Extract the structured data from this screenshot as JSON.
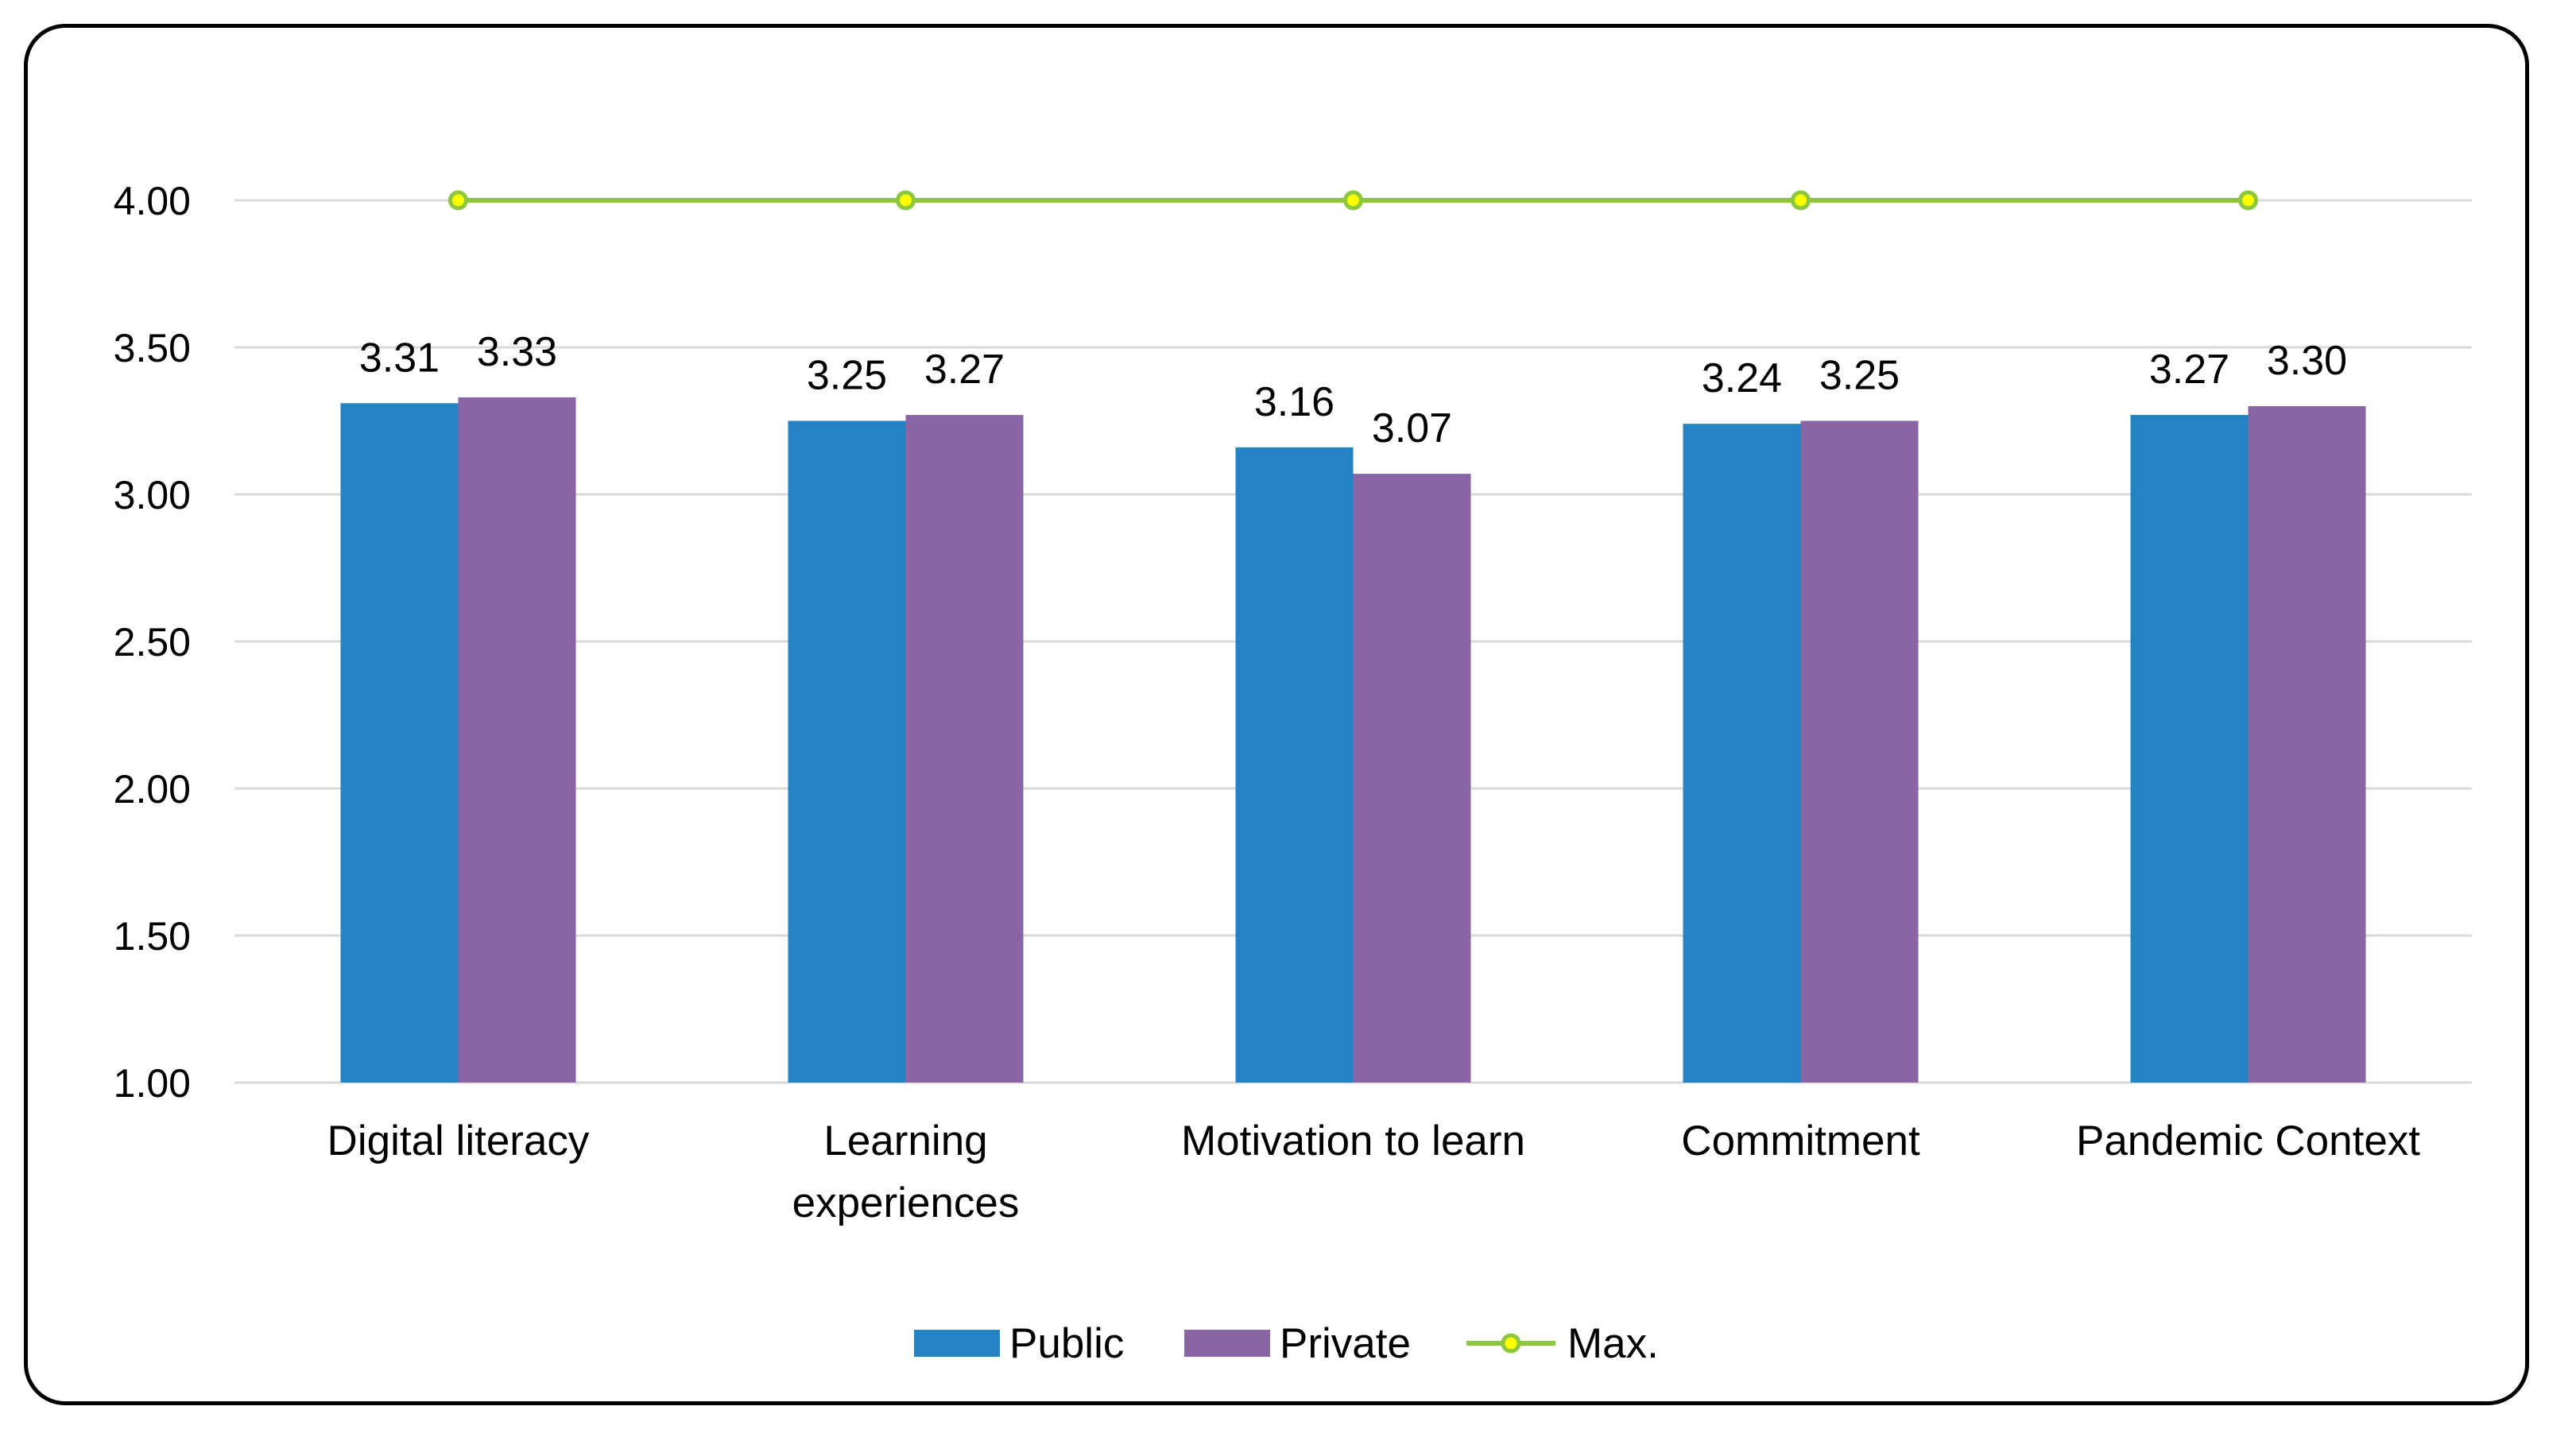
{
  "chart_data": {
    "type": "bar",
    "categories": [
      "Digital literacy",
      "Learning experiences",
      "Motivation to learn",
      "Commitment",
      "Pandemic Context"
    ],
    "category_lines": [
      [
        "Digital literacy"
      ],
      [
        "Learning",
        "experiences"
      ],
      [
        "Motivation to learn"
      ],
      [
        "Commitment"
      ],
      [
        "Pandemic Context"
      ]
    ],
    "series": [
      {
        "name": "Public",
        "values": [
          3.31,
          3.25,
          3.16,
          3.24,
          3.27
        ],
        "labels": [
          "3.31",
          "3.25",
          "3.16",
          "3.24",
          "3.27"
        ],
        "color": "#2383c3"
      },
      {
        "name": "Private",
        "values": [
          3.33,
          3.27,
          3.07,
          3.25,
          3.3
        ],
        "labels": [
          "3.33",
          "3.27",
          "3.07",
          "3.25",
          "3.30"
        ],
        "color": "#8a65a6"
      }
    ],
    "line_series": {
      "name": "Max.",
      "values": [
        4.0,
        4.0,
        4.0,
        4.0,
        4.0
      ],
      "color": "#8dc63f",
      "marker_fill": "#ffff00"
    },
    "yticks": [
      "1.00",
      "1.50",
      "2.00",
      "2.50",
      "3.00",
      "3.50",
      "4.00"
    ],
    "ylim": [
      1.0,
      4.0
    ],
    "grid": true,
    "legend": "bottom"
  }
}
